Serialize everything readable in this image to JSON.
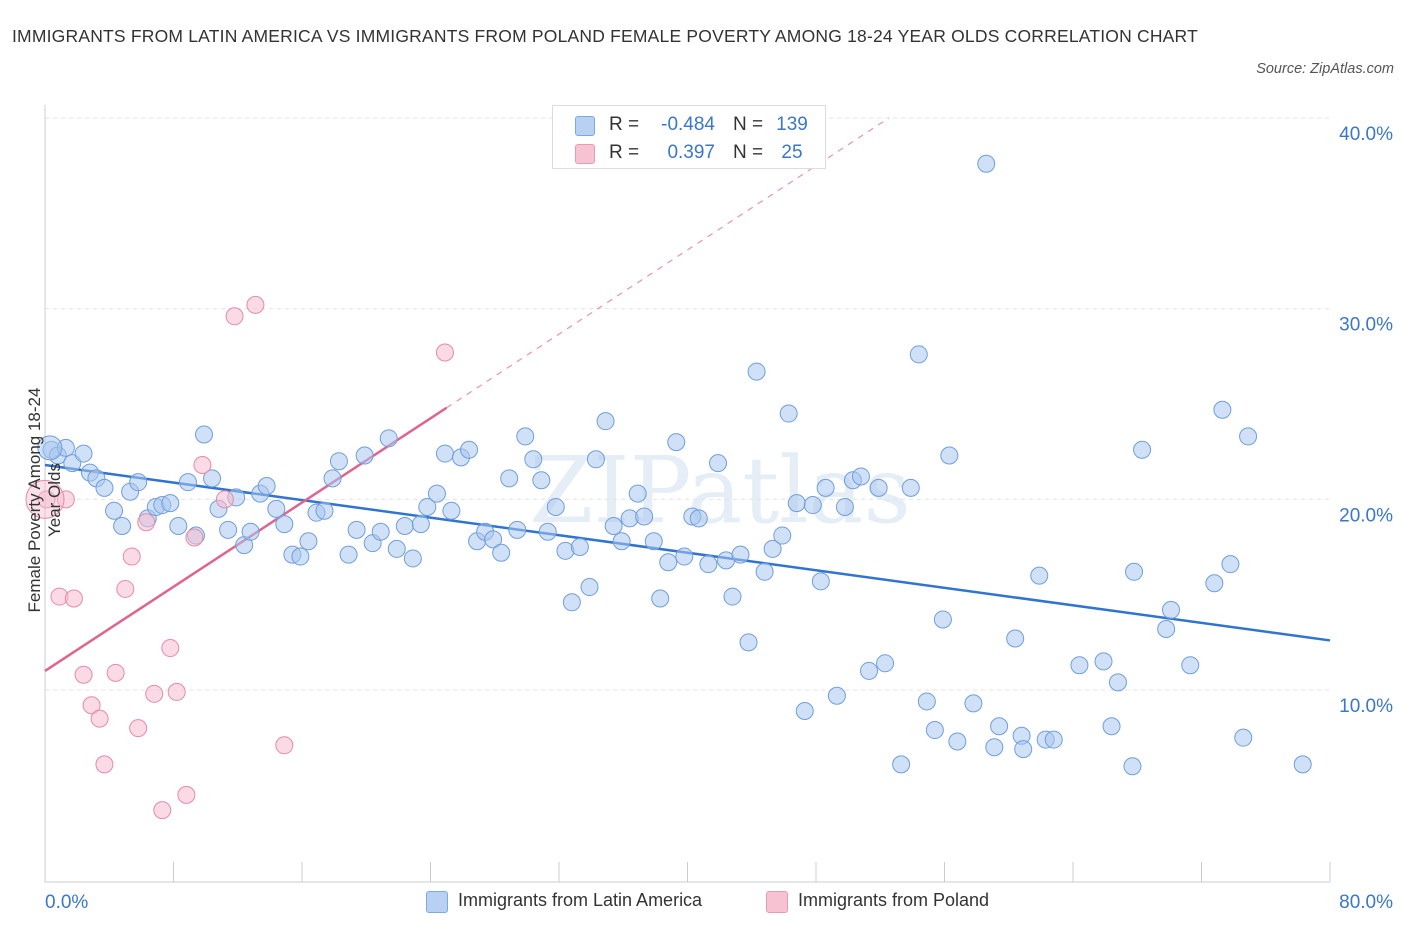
{
  "title": "IMMIGRANTS FROM LATIN AMERICA VS IMMIGRANTS FROM POLAND FEMALE POVERTY AMONG 18-24 YEAR OLDS CORRELATION CHART",
  "source": "Source: ZipAtlas.com",
  "watermark": "ZIPatlas",
  "legend_top": {
    "rows": [
      {
        "r_label": "R =",
        "r_value": "-0.484",
        "n_label": "N =",
        "n_value": "139",
        "color": "#b8d0f2"
      },
      {
        "r_label": "R =",
        "r_value": "0.397",
        "n_label": "N =",
        "n_value": "25",
        "color": "#f7c3d3"
      }
    ]
  },
  "legend_bottom": {
    "items": [
      {
        "label": "Immigrants from Latin America",
        "color": "#b8d0f2"
      },
      {
        "label": "Immigrants from Poland",
        "color": "#f7c3d3"
      }
    ]
  },
  "colors": {
    "blue_fill": "#a9c7ee",
    "blue_stroke": "#6f9fdb",
    "blue_line": "#2f74d0",
    "pink_fill": "#f6bdd0",
    "pink_stroke": "#e88aa8",
    "pink_line": "#e0648e",
    "tick_text": "#3a77c8",
    "grid": "#e3e3e3"
  },
  "chart_data": {
    "type": "scatter",
    "title": "IMMIGRANTS FROM LATIN AMERICA VS IMMIGRANTS FROM POLAND FEMALE POVERTY AMONG 18-24 YEAR OLDS CORRELATION CHART",
    "xlabel": "",
    "ylabel": "Female Poverty Among 18-24 Year Olds",
    "xlim": [
      0,
      80
    ],
    "ylim": [
      0,
      40
    ],
    "x_tick_labels": [
      "0.0%",
      "80.0%"
    ],
    "y_tick_labels": [
      "10.0%",
      "20.0%",
      "30.0%",
      "40.0%"
    ],
    "y_tick_values": [
      10,
      20,
      30,
      40
    ],
    "grid": "horizontal dashed",
    "legend_position": "top-center",
    "series": [
      {
        "name": "Immigrants from Latin America",
        "color": "#a9c7ee",
        "trend": {
          "x": [
            0,
            80
          ],
          "y": [
            21.8,
            12.6
          ]
        },
        "points": [
          [
            0.4,
            22.6
          ],
          [
            0.8,
            22.3
          ],
          [
            1.3,
            22.7
          ],
          [
            1.7,
            21.9
          ],
          [
            2.4,
            22.4
          ],
          [
            2.8,
            21.4
          ],
          [
            3.2,
            21.1
          ],
          [
            3.7,
            20.6
          ],
          [
            4.3,
            19.4
          ],
          [
            4.8,
            18.6
          ],
          [
            5.3,
            20.4
          ],
          [
            5.8,
            20.9
          ],
          [
            6.4,
            19.0
          ],
          [
            6.9,
            19.6
          ],
          [
            7.3,
            19.7
          ],
          [
            7.8,
            19.8
          ],
          [
            8.3,
            18.6
          ],
          [
            8.9,
            20.9
          ],
          [
            9.4,
            18.1
          ],
          [
            9.9,
            23.4
          ],
          [
            10.4,
            21.1
          ],
          [
            10.8,
            19.5
          ],
          [
            11.4,
            18.4
          ],
          [
            11.9,
            20.1
          ],
          [
            12.4,
            17.6
          ],
          [
            12.8,
            18.3
          ],
          [
            13.4,
            20.3
          ],
          [
            13.8,
            20.7
          ],
          [
            14.4,
            19.5
          ],
          [
            14.9,
            18.7
          ],
          [
            15.4,
            17.1
          ],
          [
            15.9,
            17.0
          ],
          [
            16.4,
            17.8
          ],
          [
            16.9,
            19.3
          ],
          [
            17.4,
            19.4
          ],
          [
            17.9,
            21.1
          ],
          [
            18.3,
            22.0
          ],
          [
            18.9,
            17.1
          ],
          [
            19.4,
            18.4
          ],
          [
            19.9,
            22.3
          ],
          [
            20.4,
            17.7
          ],
          [
            20.9,
            18.3
          ],
          [
            21.4,
            23.2
          ],
          [
            21.9,
            17.4
          ],
          [
            22.4,
            18.6
          ],
          [
            22.9,
            16.9
          ],
          [
            23.4,
            18.7
          ],
          [
            23.8,
            19.6
          ],
          [
            24.4,
            20.3
          ],
          [
            24.9,
            22.4
          ],
          [
            25.3,
            19.4
          ],
          [
            25.9,
            22.2
          ],
          [
            26.4,
            22.6
          ],
          [
            26.9,
            17.8
          ],
          [
            27.4,
            18.3
          ],
          [
            27.9,
            17.9
          ],
          [
            28.4,
            17.2
          ],
          [
            28.9,
            21.1
          ],
          [
            29.4,
            18.4
          ],
          [
            29.9,
            23.3
          ],
          [
            30.4,
            22.1
          ],
          [
            30.9,
            21.0
          ],
          [
            31.3,
            18.3
          ],
          [
            31.8,
            19.6
          ],
          [
            32.4,
            17.3
          ],
          [
            32.8,
            14.6
          ],
          [
            33.3,
            17.5
          ],
          [
            33.9,
            15.4
          ],
          [
            34.3,
            22.1
          ],
          [
            34.9,
            24.1
          ],
          [
            35.4,
            18.6
          ],
          [
            35.9,
            17.8
          ],
          [
            36.4,
            19.0
          ],
          [
            36.9,
            20.3
          ],
          [
            37.3,
            19.1
          ],
          [
            37.9,
            17.8
          ],
          [
            38.3,
            14.8
          ],
          [
            38.8,
            16.7
          ],
          [
            39.3,
            23.0
          ],
          [
            39.8,
            17.0
          ],
          [
            40.3,
            19.1
          ],
          [
            40.7,
            19.0
          ],
          [
            41.3,
            16.6
          ],
          [
            41.9,
            21.9
          ],
          [
            42.4,
            16.8
          ],
          [
            42.8,
            14.9
          ],
          [
            43.3,
            17.1
          ],
          [
            43.8,
            12.5
          ],
          [
            44.3,
            26.7
          ],
          [
            44.8,
            16.2
          ],
          [
            45.3,
            17.4
          ],
          [
            45.9,
            18.1
          ],
          [
            46.3,
            24.5
          ],
          [
            46.8,
            19.8
          ],
          [
            47.3,
            8.9
          ],
          [
            47.8,
            19.7
          ],
          [
            48.3,
            15.7
          ],
          [
            48.6,
            20.6
          ],
          [
            49.3,
            9.7
          ],
          [
            49.8,
            19.6
          ],
          [
            50.3,
            21.0
          ],
          [
            50.8,
            21.2
          ],
          [
            51.3,
            11.0
          ],
          [
            51.9,
            20.6
          ],
          [
            52.3,
            11.4
          ],
          [
            53.3,
            6.1
          ],
          [
            53.9,
            20.6
          ],
          [
            54.4,
            27.6
          ],
          [
            54.9,
            9.4
          ],
          [
            55.4,
            7.9
          ],
          [
            55.9,
            13.7
          ],
          [
            56.3,
            22.3
          ],
          [
            56.8,
            7.3
          ],
          [
            57.8,
            9.3
          ],
          [
            58.6,
            37.6
          ],
          [
            59.1,
            7.0
          ],
          [
            59.4,
            8.1
          ],
          [
            60.4,
            12.7
          ],
          [
            60.8,
            7.6
          ],
          [
            60.9,
            6.9
          ],
          [
            61.9,
            16.0
          ],
          [
            62.3,
            7.4
          ],
          [
            62.8,
            7.4
          ],
          [
            64.4,
            11.3
          ],
          [
            65.9,
            11.5
          ],
          [
            66.4,
            8.1
          ],
          [
            66.8,
            10.4
          ],
          [
            67.7,
            6.0
          ],
          [
            67.8,
            16.2
          ],
          [
            68.3,
            22.6
          ],
          [
            69.8,
            13.2
          ],
          [
            70.1,
            14.2
          ],
          [
            71.3,
            11.3
          ],
          [
            72.8,
            15.6
          ],
          [
            73.3,
            24.7
          ],
          [
            73.8,
            16.6
          ],
          [
            74.6,
            7.5
          ],
          [
            74.9,
            23.3
          ],
          [
            78.3,
            6.1
          ]
        ]
      },
      {
        "name": "Immigrants from Poland",
        "color": "#f6bdd0",
        "trend": {
          "x": [
            0,
            25
          ],
          "y": [
            11.0,
            24.8
          ]
        },
        "points": [
          [
            0.1,
            20.0
          ],
          [
            0.9,
            14.9
          ],
          [
            1.3,
            20.0
          ],
          [
            1.8,
            14.8
          ],
          [
            2.4,
            10.8
          ],
          [
            2.9,
            9.2
          ],
          [
            3.4,
            8.5
          ],
          [
            3.7,
            6.1
          ],
          [
            4.4,
            10.9
          ],
          [
            5.0,
            15.3
          ],
          [
            5.4,
            17.0
          ],
          [
            5.8,
            8.0
          ],
          [
            6.3,
            18.8
          ],
          [
            6.8,
            9.8
          ],
          [
            7.3,
            3.7
          ],
          [
            7.8,
            12.2
          ],
          [
            8.2,
            9.9
          ],
          [
            8.8,
            4.5
          ],
          [
            9.3,
            18.0
          ],
          [
            9.8,
            21.8
          ],
          [
            11.2,
            20.0
          ],
          [
            11.8,
            29.6
          ],
          [
            13.1,
            30.2
          ],
          [
            14.9,
            7.1
          ],
          [
            24.9,
            27.7
          ]
        ]
      }
    ]
  }
}
